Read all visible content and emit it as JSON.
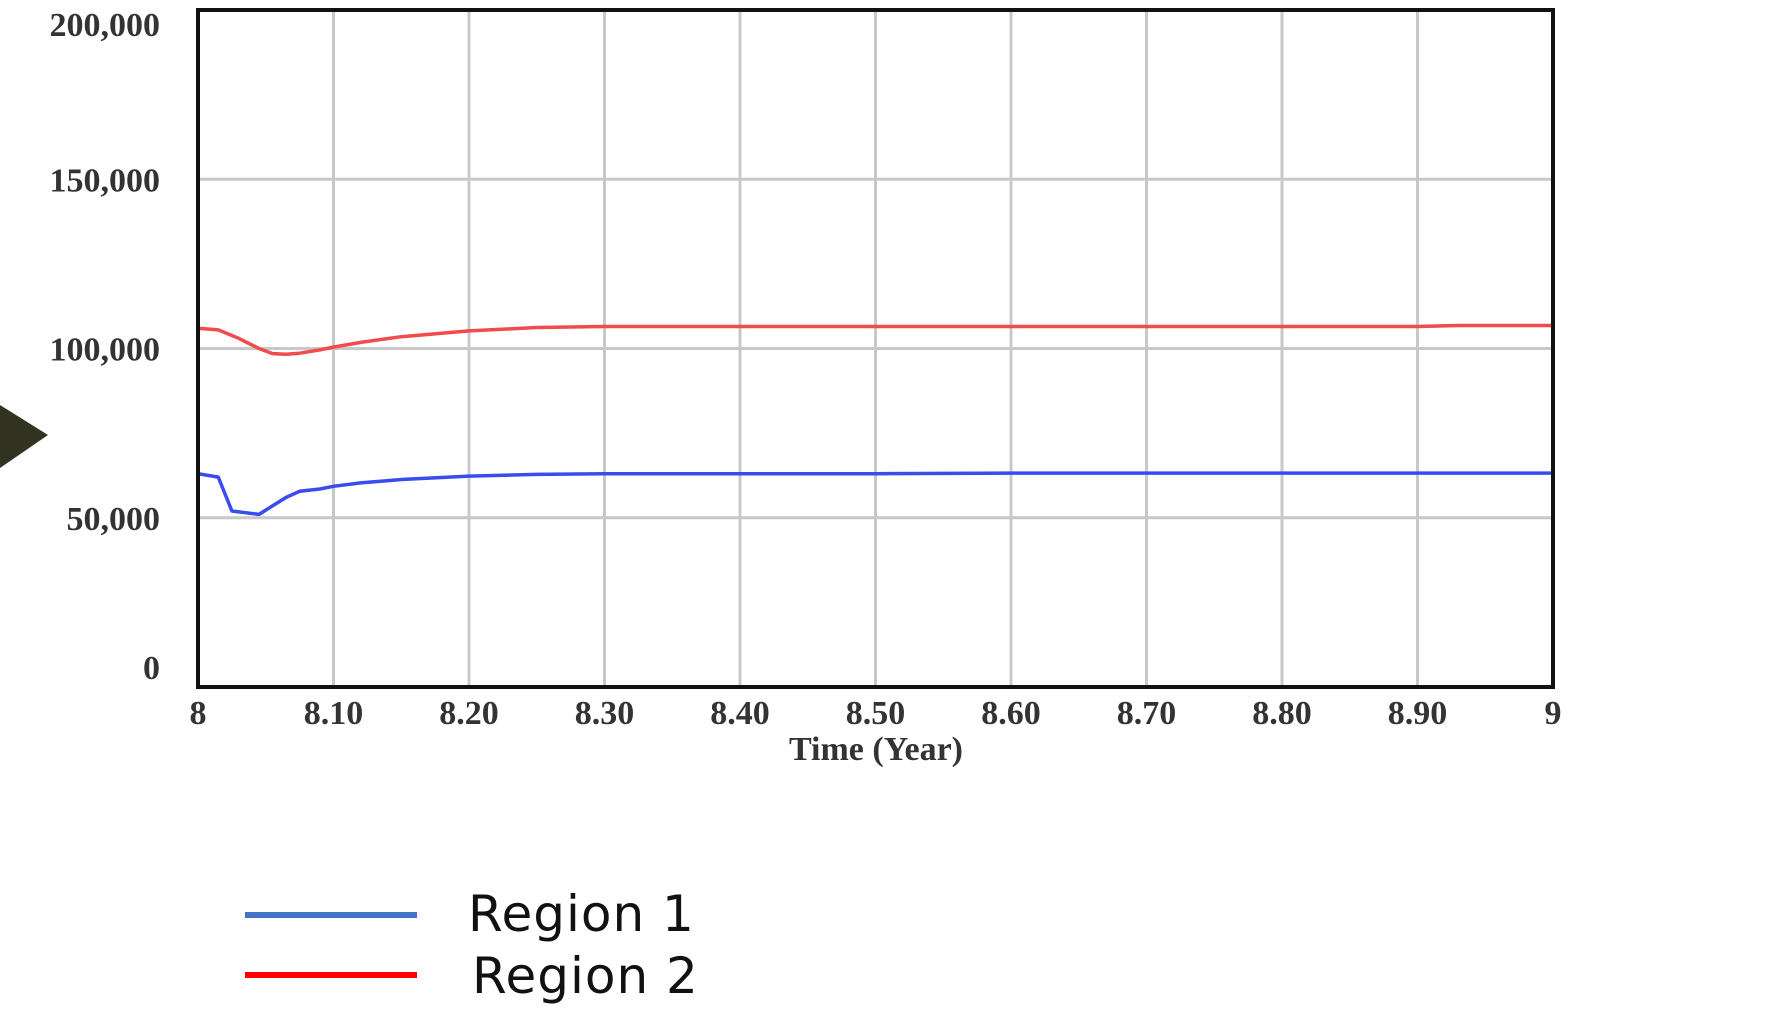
{
  "chart_data": {
    "type": "line",
    "xlabel": "Time (Year)",
    "ylabel": "",
    "xlim": [
      8,
      9
    ],
    "ylim": [
      0,
      200000
    ],
    "x_ticks": [
      "8",
      "8.10",
      "8.20",
      "8.30",
      "8.40",
      "8.50",
      "8.60",
      "8.70",
      "8.80",
      "8.90",
      "9"
    ],
    "y_ticks": [
      "0",
      "50,000",
      "100,000",
      "150,000",
      "200,000"
    ],
    "grid": true,
    "legend_placement": "bottom-left",
    "series": [
      {
        "name": "Region 1",
        "color": "#3a4cf0",
        "legend_color": "#4472c4",
        "x": [
          8.0,
          8.015,
          8.02,
          8.025,
          8.035,
          8.045,
          8.055,
          8.065,
          8.075,
          8.09,
          8.1,
          8.12,
          8.15,
          8.2,
          8.25,
          8.3,
          8.4,
          8.5,
          8.6,
          8.7,
          8.8,
          8.9,
          9.0
        ],
        "values": [
          63000,
          62000,
          57000,
          52000,
          51500,
          51000,
          53500,
          56000,
          57800,
          58500,
          59300,
          60300,
          61300,
          62300,
          62800,
          63000,
          63000,
          63000,
          63200,
          63200,
          63200,
          63200,
          63200
        ]
      },
      {
        "name": "Region 2",
        "color": "#f24b4b",
        "legend_color": "#ff0000",
        "x": [
          8.0,
          8.015,
          8.03,
          8.045,
          8.055,
          8.065,
          8.075,
          8.09,
          8.1,
          8.12,
          8.15,
          8.2,
          8.25,
          8.3,
          8.4,
          8.5,
          8.6,
          8.7,
          8.8,
          8.9,
          8.93,
          9.0
        ],
        "values": [
          106000,
          105500,
          103000,
          100000,
          98500,
          98300,
          98600,
          99600,
          100400,
          101800,
          103500,
          105200,
          106200,
          106500,
          106500,
          106500,
          106500,
          106500,
          106500,
          106500,
          106800,
          106800
        ]
      }
    ]
  }
}
